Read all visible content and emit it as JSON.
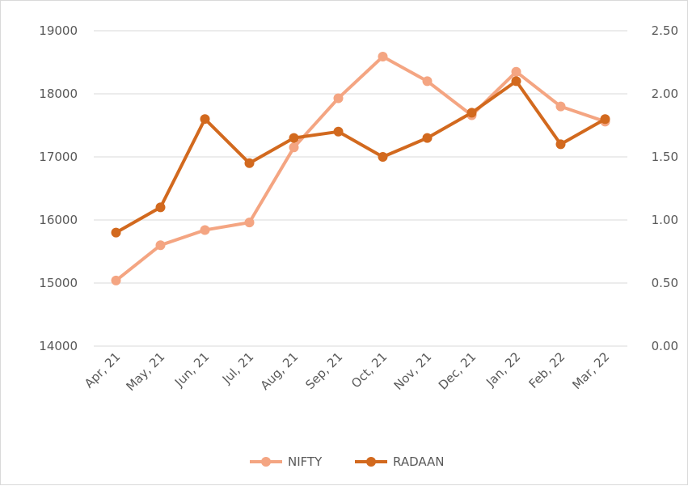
{
  "chart_data": {
    "type": "line",
    "categories": [
      "Apr, 21",
      "May, 21",
      "Jun, 21",
      "Jul, 21",
      "Aug, 21",
      "Sep, 21",
      "Oct, 21",
      "Nov, 21",
      "Dec, 21",
      "Jan, 22",
      "Feb, 22",
      "Mar, 22"
    ],
    "series": [
      {
        "name": "NIFTY",
        "axis": "left",
        "color": "#f4a582",
        "values": [
          15040,
          15600,
          15840,
          15960,
          17150,
          17930,
          18590,
          18200,
          17660,
          18350,
          17800,
          17560
        ]
      },
      {
        "name": "RADAAN",
        "axis": "right",
        "color": "#d2691e",
        "values": [
          0.9,
          1.1,
          1.8,
          1.45,
          1.65,
          1.7,
          1.5,
          1.65,
          1.85,
          2.1,
          1.6,
          1.8
        ]
      }
    ],
    "y_left": {
      "ylim": [
        14000,
        19000
      ],
      "ticks": [
        "19000",
        "18000",
        "17000",
        "16000",
        "15000",
        "14000"
      ]
    },
    "y_right": {
      "ylim": [
        0,
        2.5
      ],
      "ticks": [
        "2.50",
        "2.00",
        "1.50",
        "1.00",
        "0.50",
        "0.00"
      ]
    },
    "grid": true,
    "legend_position": "bottom"
  }
}
